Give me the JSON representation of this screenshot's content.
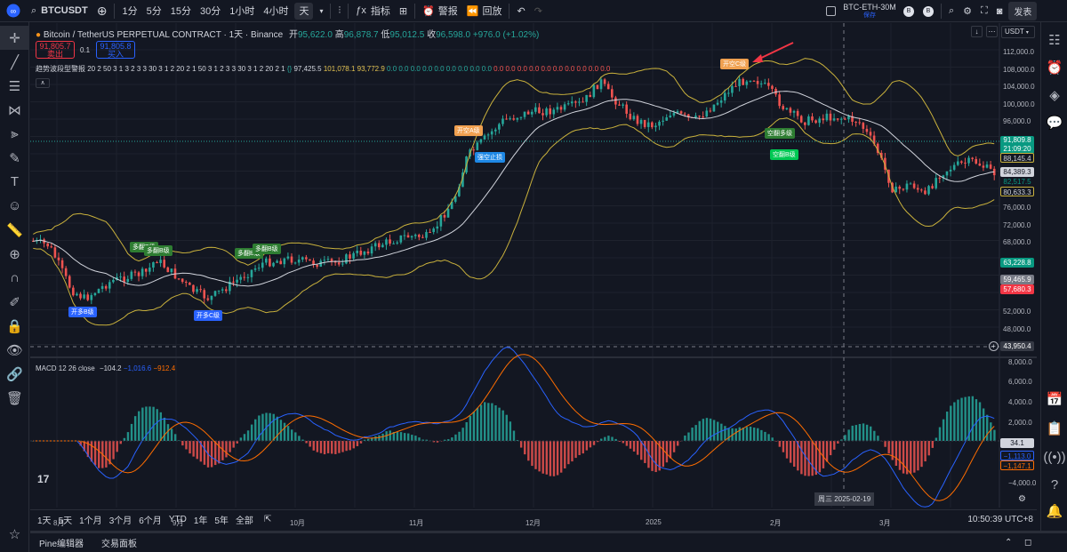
{
  "topbar": {
    "symbol": "BTCUSDT",
    "intervals": [
      "1分",
      "5分",
      "15分",
      "30分",
      "1小时",
      "4小时",
      "天"
    ],
    "active_interval": "天",
    "indicators_label": "指标",
    "alert_label": "警报",
    "replay_label": "回放",
    "layout_name": "BTC-ETH-30M",
    "layout_status": "保存",
    "publish_label": "发表"
  },
  "legend": {
    "title": "Bitcoin / TetherUS PERPETUAL CONTRACT · 1天 · Binance",
    "o_label": "开",
    "o": "95,622.0",
    "h_label": "高",
    "h": "96,878.7",
    "l_label": "低",
    "l": "95,012.5",
    "c_label": "收",
    "c": "96,598.0",
    "change": "+976.0 (+1.02%)",
    "sell_price": "91,805.7",
    "sell_label": "卖出",
    "spread": "0.1",
    "buy_price": "91,805.8",
    "buy_label": "买入",
    "indicator_name": "趋势波段型警报 20 2 50 3 1 3 2 3 3 30 3 1 2 20 2 1 50 3 1 2 3 3 30 3 1 2 20 2 1",
    "ind_v1": "97,425.5",
    "ind_v2": "101,078.1",
    "ind_v3": "93,772.9",
    "ind_zeros": "0.0 0.0 0.0 0.0 0.0 0.0 0.0 0.0 0.0",
    "ind_zeros_red": "0.0 0.0 0.0 0.0 0.0 0.0 0.0 0.0 0.0 0.0"
  },
  "macd": {
    "label": "MACD 12 26 close",
    "v1": "−104.2",
    "v2": "−1,016.6",
    "v3": "−912.4"
  },
  "currency": "USDT",
  "price_axis": [
    "112,000.0",
    "108,000.0",
    "104,000.0",
    "100,000.0",
    "96,000.0",
    "76,000.0",
    "72,000.0",
    "68,000.0",
    "52,000.0",
    "48,000.0"
  ],
  "price_tags": {
    "last": "91,809.8",
    "countdown": "21:09:20",
    "bb_upper": "88,145.4",
    "bb_mid": "84,389.3",
    "last2": "82,517.5",
    "bb_lower": "80,633.3",
    "green_tag": "63,228.8",
    "gray_tag": "59,465.9",
    "red_tag": "57,680.3",
    "crosshair": "43,950.4"
  },
  "macd_axis": [
    "8,000.0",
    "6,000.0",
    "4,000.0",
    "2,000.0",
    "−4,000.0"
  ],
  "macd_tags": {
    "hist": "34.1",
    "signal": "−1,113.0",
    "macd": "−1,147.1"
  },
  "time_axis": [
    "8月",
    "9月",
    "10月",
    "11月",
    "12月",
    "2025",
    "2月",
    "3月"
  ],
  "crosshair_date": "周三 2025-02-19",
  "signals": [
    "开多B级",
    "多翻B级",
    "多翻B级",
    "开多C级",
    "多翻B级",
    "多翻B级",
    "开空A级",
    "强空止损",
    "开空C级",
    "空翻多级",
    "空翻B级"
  ],
  "bottom": {
    "ranges": [
      "1天",
      "5天",
      "1个月",
      "3个月",
      "6个月",
      "YTD",
      "1年",
      "5年",
      "全部"
    ],
    "time": "10:50:39 UTC+8"
  },
  "footer": {
    "tab1": "Pine编辑器",
    "tab2": "交易面板"
  },
  "colors": {
    "up": "#26a69a",
    "down": "#ef5350",
    "bb": "#c9b13c",
    "basis": "#d1d4dc",
    "macd": "#2962ff",
    "signal": "#ff6d00"
  }
}
